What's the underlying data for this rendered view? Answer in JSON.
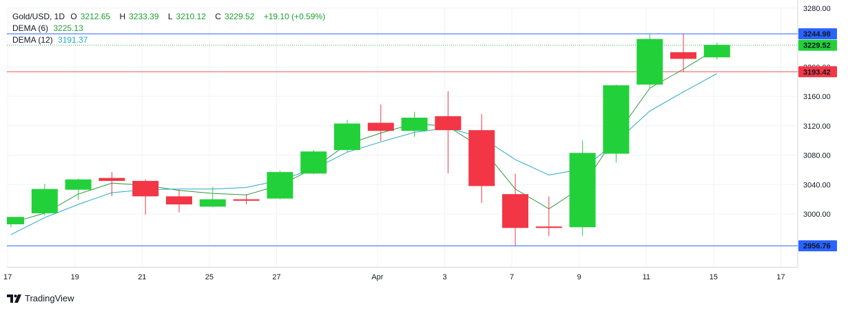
{
  "legend": {
    "symbol": "Gold/USD, 1D",
    "open_key": "O",
    "open": "3212.65",
    "high_key": "H",
    "high": "3233.39",
    "low_key": "L",
    "low": "3210.12",
    "close_key": "C",
    "close": "3229.52",
    "change": "+19.10 (+0.59%)",
    "dema6_label": "DEMA (6)",
    "dema6_value": "3225.13",
    "dema12_label": "DEMA (12)",
    "dema12_value": "3191.37"
  },
  "brand": "TradingView",
  "chart_data": {
    "type": "candlestick",
    "ylim": [
      2930,
      3280
    ],
    "y_ticks": [
      {
        "value": 3000,
        "label": "3000.00"
      },
      {
        "value": 3040,
        "label": "3040.00"
      },
      {
        "value": 3080,
        "label": "3080.00"
      },
      {
        "value": 3120,
        "label": "3120.00"
      },
      {
        "value": 3160,
        "label": "3160.00"
      },
      {
        "value": 3200,
        "label": "3200.00"
      },
      {
        "value": 3280,
        "label": "3280.00"
      }
    ],
    "x_ticks": [
      {
        "index": -0.1,
        "label": "17"
      },
      {
        "index": 1.9,
        "label": "19"
      },
      {
        "index": 3.9,
        "label": "21"
      },
      {
        "index": 5.9,
        "label": "25"
      },
      {
        "index": 7.9,
        "label": "27"
      },
      {
        "index": 10.9,
        "label": "Apr"
      },
      {
        "index": 12.9,
        "label": "3"
      },
      {
        "index": 14.9,
        "label": "7"
      },
      {
        "index": 16.9,
        "label": "9"
      },
      {
        "index": 18.9,
        "label": "11"
      },
      {
        "index": 20.9,
        "label": "15"
      },
      {
        "index": 22.9,
        "label": "17"
      }
    ],
    "candles": [
      {
        "o": 2986,
        "h": 2996,
        "l": 2982,
        "c": 2996
      },
      {
        "o": 3001,
        "h": 3041,
        "l": 2998,
        "c": 3034
      },
      {
        "o": 3033,
        "h": 3048,
        "l": 3019,
        "c": 3047
      },
      {
        "o": 3049,
        "h": 3057,
        "l": 3024,
        "c": 3045
      },
      {
        "o": 3045,
        "h": 3047,
        "l": 2999,
        "c": 3024
      },
      {
        "o": 3024,
        "h": 3033,
        "l": 3002,
        "c": 3013
      },
      {
        "o": 3010,
        "h": 3037,
        "l": 3009,
        "c": 3020
      },
      {
        "o": 3020,
        "h": 3027,
        "l": 3013,
        "c": 3018
      },
      {
        "o": 3021,
        "h": 3059,
        "l": 3020,
        "c": 3057
      },
      {
        "o": 3055,
        "h": 3087,
        "l": 3054,
        "c": 3085
      },
      {
        "o": 3087,
        "h": 3128,
        "l": 3084,
        "c": 3123
      },
      {
        "o": 3124,
        "h": 3149,
        "l": 3099,
        "c": 3113
      },
      {
        "o": 3113,
        "h": 3139,
        "l": 3105,
        "c": 3131
      },
      {
        "o": 3133,
        "h": 3167,
        "l": 3055,
        "c": 3114
      },
      {
        "o": 3114,
        "h": 3136,
        "l": 3015,
        "c": 3038
      },
      {
        "o": 3027,
        "h": 3055,
        "l": 2957,
        "c": 2981
      },
      {
        "o": 2983,
        "h": 3024,
        "l": 2970,
        "c": 2981
      },
      {
        "o": 2982,
        "h": 3100,
        "l": 2970,
        "c": 3083
      },
      {
        "o": 3082,
        "h": 3176,
        "l": 3070,
        "c": 3175
      },
      {
        "o": 3176,
        "h": 3245,
        "l": 3172,
        "c": 3238
      },
      {
        "o": 3220,
        "h": 3245,
        "l": 3193,
        "c": 3211
      },
      {
        "o": 3213,
        "h": 3233,
        "l": 3210,
        "c": 3230
      }
    ],
    "series": [
      {
        "name": "DEMA (6)",
        "color": "#2c9a3a",
        "values": [
          2988,
          3001,
          3027,
          3042,
          3039,
          3032,
          3028,
          3026,
          3039,
          3062,
          3095,
          3110,
          3123,
          3119,
          3090,
          3034,
          3007,
          3037,
          3107,
          3171,
          3197,
          3225
        ]
      },
      {
        "name": "DEMA (12)",
        "color": "#22a7c9",
        "values": [
          2972,
          2995,
          3013,
          3029,
          3033,
          3034,
          3034,
          3036,
          3046,
          3061,
          3084,
          3098,
          3111,
          3117,
          3104,
          3074,
          3053,
          3061,
          3098,
          3140,
          3166,
          3191
        ]
      }
    ],
    "price_lines": [
      {
        "value": 3244.98,
        "label": "3244.98",
        "line_color": "#2962ff",
        "tag_color": "#2962ff",
        "style": "solid"
      },
      {
        "value": 3229.52,
        "label": "3229.52",
        "line_color": "#22ab3a",
        "tag_color": "#22d13a",
        "style": "dotted"
      },
      {
        "value": 3193.42,
        "label": "3193.42",
        "line_color": "#ef5350",
        "tag_color": "#f23645",
        "style": "solid"
      },
      {
        "value": 2956.76,
        "label": "2956.76",
        "line_color": "#2962ff",
        "tag_color": "#2962ff",
        "style": "solid"
      }
    ],
    "up_color": "#22d13a",
    "down_color": "#f23645",
    "grid": true
  }
}
